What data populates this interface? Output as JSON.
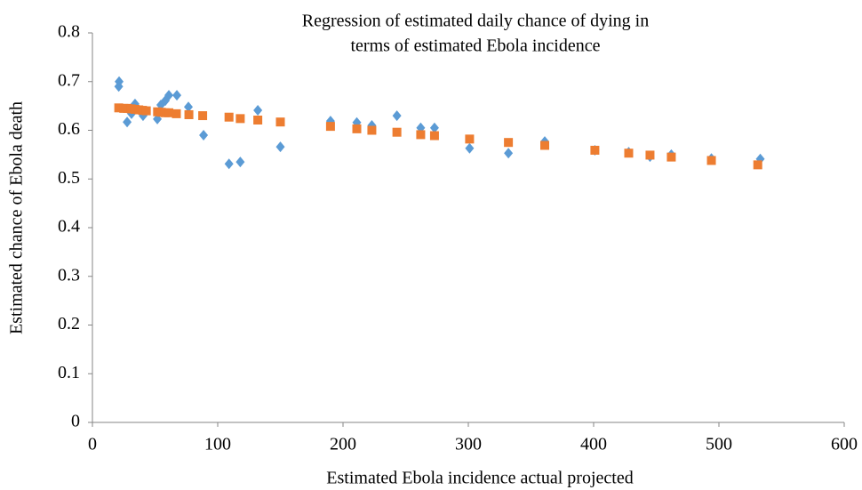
{
  "chart_data": {
    "type": "scatter",
    "title": [
      "Regression of estimated daily chance of dying in",
      "terms of estimated Ebola incidence"
    ],
    "x_label": "Estimated Ebola incidence actual projected",
    "y_label": "Estimated chance of Ebola death",
    "xlim": [
      0,
      600
    ],
    "xticks": [
      0,
      100,
      200,
      300,
      400,
      500,
      600
    ],
    "ylim": [
      0,
      0.8
    ],
    "yticks": [
      0,
      0.1,
      0.2,
      0.3,
      0.4,
      0.5,
      0.6,
      0.7,
      0.8
    ],
    "grid": false,
    "series": [
      {
        "color": "#5b9bd5",
        "marker": "diamond",
        "x": [
          21.3,
          21,
          27.7,
          31.2,
          34,
          40.4,
          51.8,
          54.6,
          58.2,
          61,
          67.4,
          76.6,
          88.7,
          109,
          118,
          132,
          150,
          190,
          211,
          223,
          243,
          262,
          273,
          301,
          332,
          361,
          401,
          428,
          445,
          462,
          494,
          533
        ],
        "values": [
          0.7,
          0.69,
          0.617,
          0.634,
          0.654,
          0.63,
          0.623,
          0.652,
          0.661,
          0.672,
          0.672,
          0.648,
          0.59,
          0.531,
          0.535,
          0.641,
          0.566,
          0.619,
          0.616,
          0.61,
          0.63,
          0.605,
          0.605,
          0.563,
          0.553,
          0.577,
          0.559,
          0.555,
          0.546,
          0.55,
          0.542,
          0.541
        ]
      },
      {
        "color": "#ed7d31",
        "marker": "square",
        "x": [
          21,
          25,
          28,
          31,
          34,
          37,
          40,
          43,
          52,
          55,
          58,
          61,
          67,
          77,
          88,
          109,
          118,
          132,
          150,
          190,
          211,
          223,
          243,
          262,
          273,
          301,
          332,
          361,
          401,
          428,
          445,
          462,
          494,
          531
        ],
        "values": [
          0.646,
          0.645,
          0.645,
          0.644,
          0.643,
          0.642,
          0.641,
          0.64,
          0.638,
          0.637,
          0.636,
          0.636,
          0.634,
          0.632,
          0.63,
          0.627,
          0.624,
          0.621,
          0.617,
          0.608,
          0.603,
          0.6,
          0.596,
          0.591,
          0.589,
          0.582,
          0.575,
          0.569,
          0.559,
          0.553,
          0.549,
          0.545,
          0.538,
          0.529
        ]
      }
    ]
  }
}
